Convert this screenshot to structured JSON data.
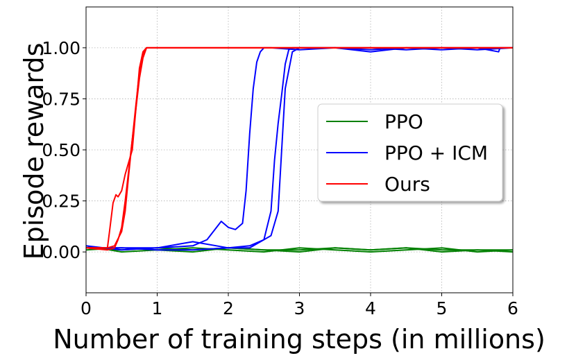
{
  "chart_data": {
    "type": "line",
    "title": "",
    "xlabel": "Number of training steps (in millions)",
    "ylabel": "Episode rewards",
    "xlim": [
      0,
      6
    ],
    "ylim": [
      -0.2,
      1.2
    ],
    "xticks": [
      0,
      1,
      2,
      3,
      4,
      5,
      6
    ],
    "xtick_labels": [
      "0",
      "1",
      "2",
      "3",
      "4",
      "5",
      "6"
    ],
    "yticks": [
      0.0,
      0.25,
      0.5,
      0.75,
      1.0
    ],
    "ytick_labels": [
      "0.00",
      "0.25",
      "0.50",
      "0.75",
      "1.00"
    ],
    "grid": true,
    "legend_position": "center-right",
    "series": [
      {
        "name": "PPO",
        "color": "#008000",
        "runs": [
          {
            "x": [
              0,
              0.5,
              1.0,
              1.5,
              2.0,
              2.5,
              3.0,
              3.5,
              4.0,
              4.5,
              5.0,
              5.5,
              6.0
            ],
            "y": [
              0.02,
              0.01,
              0.02,
              0.01,
              0.02,
              0.01,
              0.01,
              0.02,
              0.01,
              0.02,
              0.01,
              0.01,
              0.01
            ]
          },
          {
            "x": [
              0,
              0.5,
              1.0,
              1.5,
              2.0,
              2.5,
              3.0,
              3.5,
              4.0,
              4.5,
              5.0,
              5.5,
              6.0
            ],
            "y": [
              0.01,
              0.02,
              0.01,
              0.02,
              0.01,
              0.0,
              0.02,
              0.01,
              0.0,
              0.01,
              0.02,
              0.0,
              0.01
            ]
          },
          {
            "x": [
              0,
              0.5,
              1.0,
              1.5,
              2.0,
              2.5,
              3.0,
              3.5,
              4.0,
              4.5,
              5.0,
              5.5,
              6.0
            ],
            "y": [
              0.03,
              0.0,
              0.01,
              0.0,
              0.02,
              0.01,
              0.0,
              0.02,
              0.01,
              0.02,
              0.0,
              0.01,
              0.0
            ]
          }
        ]
      },
      {
        "name": "PPO + ICM",
        "color": "#0000ff",
        "runs": [
          {
            "x": [
              0,
              0.5,
              1.0,
              1.5,
              1.7,
              1.9,
              2.0,
              2.1,
              2.2,
              2.25,
              2.3,
              2.35,
              2.4,
              2.45,
              2.5,
              2.6,
              3.0,
              3.5,
              4.0,
              4.5,
              5.0,
              5.5,
              5.8,
              5.81,
              5.82,
              6.0
            ],
            "y": [
              0.02,
              0.02,
              0.02,
              0.03,
              0.06,
              0.15,
              0.12,
              0.11,
              0.14,
              0.3,
              0.58,
              0.8,
              0.93,
              0.98,
              1.0,
              1.0,
              0.99,
              1.0,
              0.98,
              1.0,
              0.99,
              1.0,
              0.98,
              0.99,
              1.0,
              1.0
            ]
          },
          {
            "x": [
              0,
              0.5,
              1.0,
              1.5,
              2.0,
              2.3,
              2.5,
              2.6,
              2.65,
              2.7,
              2.75,
              2.8,
              2.85,
              2.9,
              3.0,
              3.5,
              4.0,
              4.5,
              5.0,
              5.5,
              6.0
            ],
            "y": [
              0.03,
              0.01,
              0.02,
              0.05,
              0.02,
              0.03,
              0.06,
              0.2,
              0.45,
              0.63,
              0.77,
              0.92,
              0.99,
              1.0,
              1.0,
              1.0,
              0.99,
              1.0,
              1.0,
              0.99,
              1.0
            ]
          },
          {
            "x": [
              0,
              0.5,
              1.0,
              1.5,
              2.0,
              2.3,
              2.5,
              2.6,
              2.7,
              2.75,
              2.8,
              2.9,
              3.0,
              3.5,
              4.0,
              4.5,
              5.0,
              5.5,
              6.0
            ],
            "y": [
              0.02,
              0.02,
              0.01,
              0.01,
              0.02,
              0.02,
              0.06,
              0.08,
              0.2,
              0.5,
              0.8,
              0.98,
              1.0,
              1.0,
              1.0,
              0.99,
              1.0,
              1.0,
              1.0
            ]
          }
        ]
      },
      {
        "name": "Ours",
        "color": "#ff0000",
        "runs": [
          {
            "x": [
              0,
              0.3,
              0.33,
              0.38,
              0.42,
              0.45,
              0.5,
              0.55,
              0.6,
              0.65,
              0.7,
              0.75,
              0.8,
              0.85,
              1.0,
              6.0
            ],
            "y": [
              0.02,
              0.02,
              0.1,
              0.24,
              0.28,
              0.27,
              0.3,
              0.38,
              0.44,
              0.5,
              0.7,
              0.9,
              0.98,
              1.0,
              1.0,
              1.0
            ]
          },
          {
            "x": [
              0,
              0.3,
              0.4,
              0.5,
              0.55,
              0.6,
              0.65,
              0.7,
              0.75,
              0.8,
              0.85,
              0.9,
              1.0,
              6.0
            ],
            "y": [
              0.02,
              0.02,
              0.03,
              0.1,
              0.2,
              0.38,
              0.55,
              0.7,
              0.85,
              0.95,
              1.0,
              1.0,
              1.0,
              1.0
            ]
          },
          {
            "x": [
              0,
              0.3,
              0.4,
              0.45,
              0.5,
              0.55,
              0.6,
              0.65,
              0.7,
              0.75,
              0.8,
              0.85,
              0.9,
              1.0,
              6.0
            ],
            "y": [
              0.02,
              0.01,
              0.02,
              0.06,
              0.12,
              0.25,
              0.4,
              0.55,
              0.72,
              0.88,
              0.97,
              1.0,
              1.0,
              1.0,
              1.0
            ]
          }
        ]
      }
    ]
  }
}
